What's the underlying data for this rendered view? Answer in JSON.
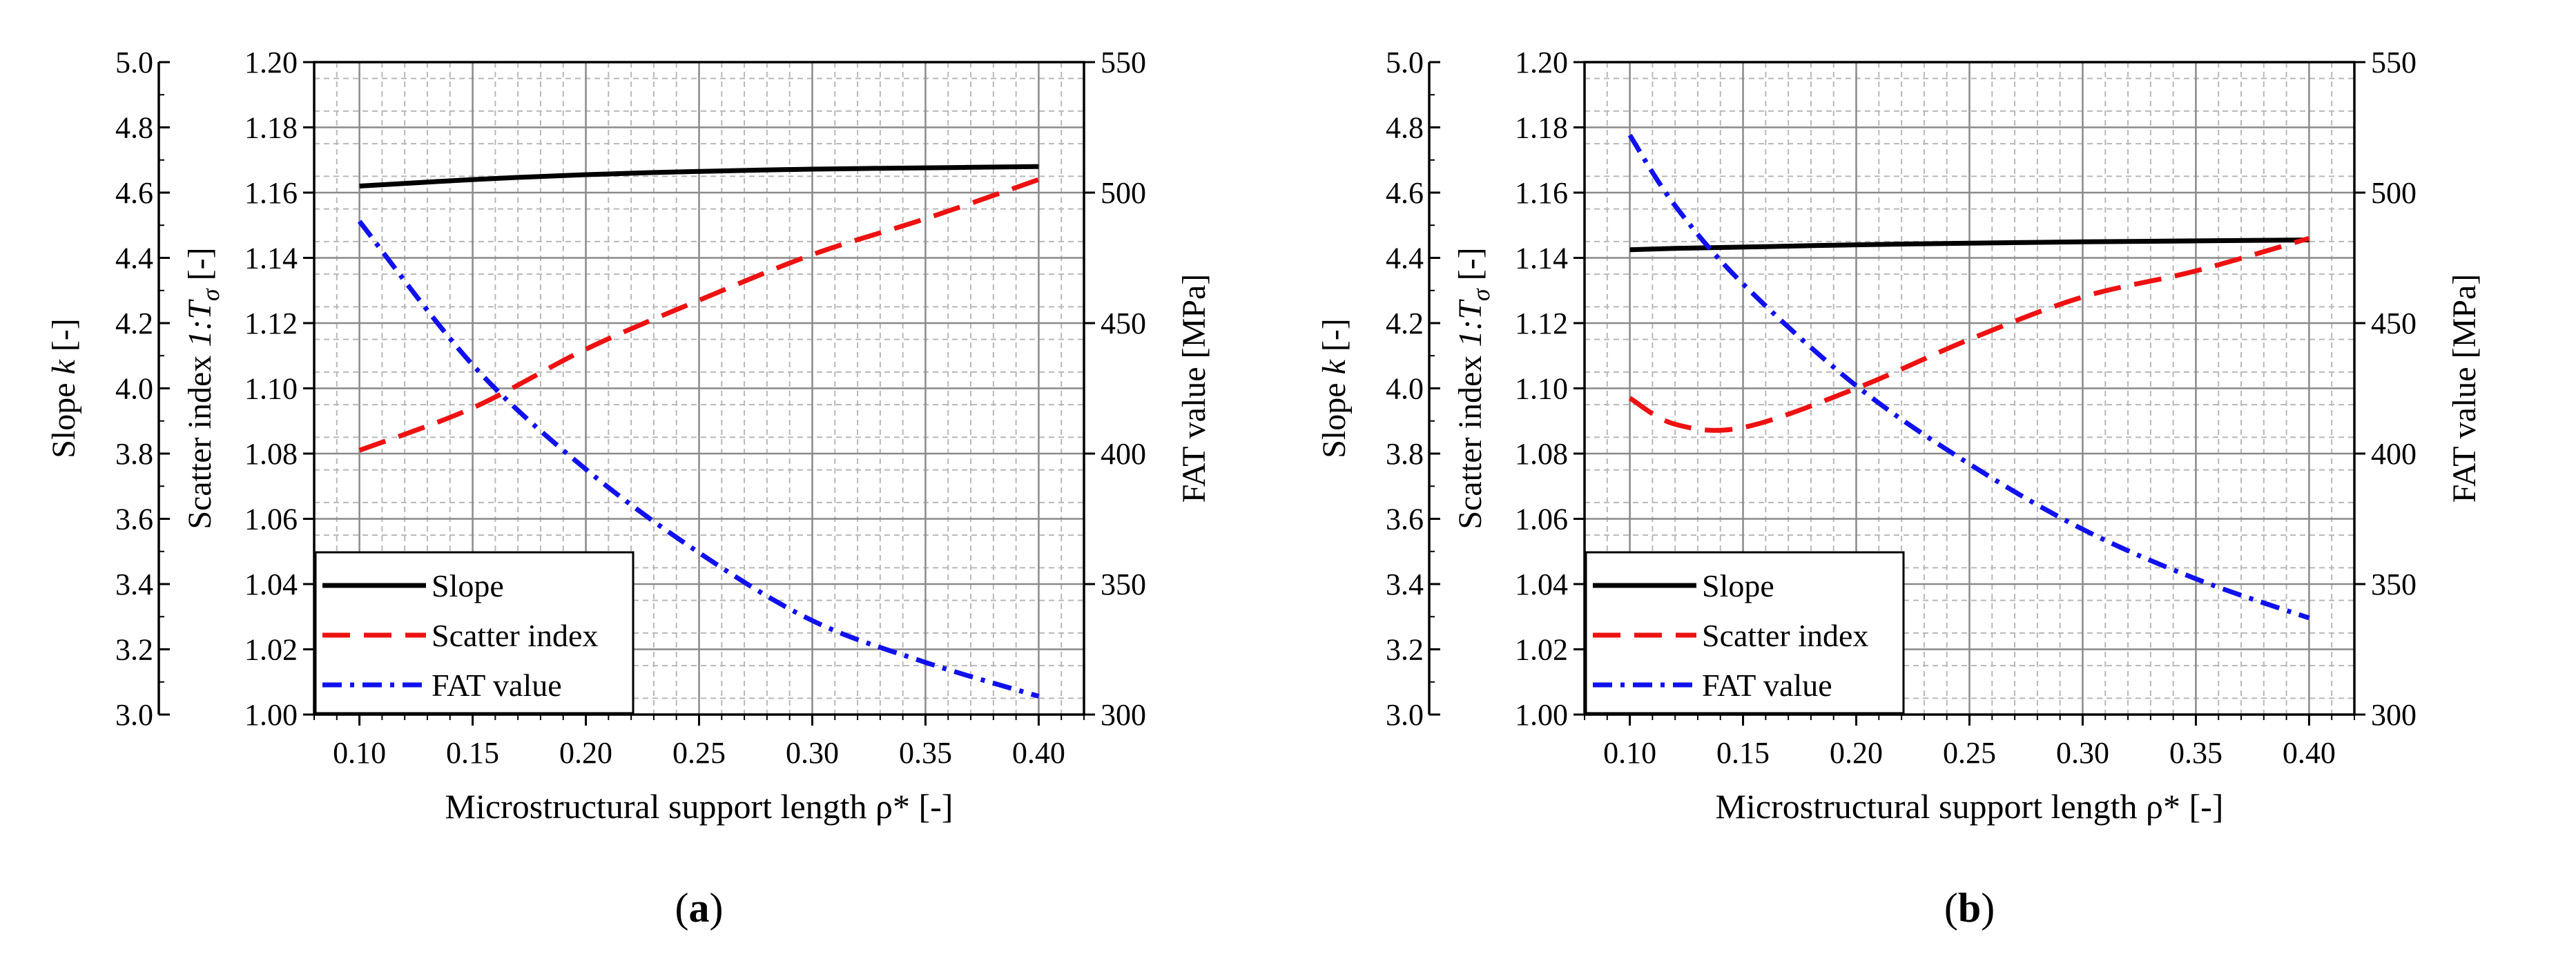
{
  "chart_data": [
    {
      "type": "line",
      "panel_label": "a",
      "xlabel": "Microstructural support length ρ* [-]",
      "ylabel_left_prefix": "Slope ",
      "ylabel_left_var": "k",
      "ylabel_left_suffix": " [-]",
      "ylabel_mid_prefix": "Scatter index ",
      "ylabel_mid_var": "1:T",
      "ylabel_mid_sub": "σ",
      "ylabel_mid_suffix": " [-]",
      "ylabel_right": "FAT value [MPa]",
      "xlim": [
        0.08,
        0.42
      ],
      "xticks": [
        "0.10",
        "0.15",
        "0.20",
        "0.25",
        "0.30",
        "0.35",
        "0.40"
      ],
      "ylim_slope": [
        3.0,
        5.0
      ],
      "yticks_slope": [
        "3.0",
        "3.2",
        "3.4",
        "3.6",
        "3.8",
        "4.0",
        "4.2",
        "4.4",
        "4.6",
        "4.8",
        "5.0"
      ],
      "ylim_scatter": [
        1.0,
        1.2
      ],
      "yticks_scatter": [
        "1.00",
        "1.02",
        "1.04",
        "1.06",
        "1.08",
        "1.10",
        "1.12",
        "1.14",
        "1.16",
        "1.18",
        "1.20"
      ],
      "ylim_fat": [
        300,
        550
      ],
      "yticks_fat": [
        "300",
        "350",
        "400",
        "450",
        "500",
        "550"
      ],
      "x": [
        0.1,
        0.15,
        0.2,
        0.25,
        0.3,
        0.35,
        0.4
      ],
      "series": [
        {
          "name": "Slope",
          "axis": "slope",
          "color": "#000000",
          "dash": "",
          "values": [
            4.62,
            4.64,
            4.655,
            4.665,
            4.672,
            4.676,
            4.68
          ]
        },
        {
          "name": "Scatter index",
          "axis": "scatter",
          "color": "#ee1111",
          "dash": "40 20",
          "values": [
            1.081,
            1.094,
            1.112,
            1.127,
            1.141,
            1.152,
            1.164
          ]
        },
        {
          "name": "FAT value",
          "axis": "fat",
          "color": "#1111ee",
          "dash": "28 12 6 12",
          "values": [
            489,
            434,
            394,
            362,
            336,
            320,
            307
          ]
        }
      ],
      "legend": {
        "position": "bottom-left",
        "entries": [
          "Slope",
          "Scatter index",
          "FAT value"
        ]
      }
    },
    {
      "type": "line",
      "panel_label": "b",
      "xlabel": "Microstructural support length ρ* [-]",
      "ylabel_left_prefix": "Slope ",
      "ylabel_left_var": "k",
      "ylabel_left_suffix": " [-]",
      "ylabel_mid_prefix": "Scatter index ",
      "ylabel_mid_var": "1:T",
      "ylabel_mid_sub": "σ",
      "ylabel_mid_suffix": " [-]",
      "ylabel_right": "FAT value [MPa]",
      "xlim": [
        0.08,
        0.42
      ],
      "xticks": [
        "0.10",
        "0.15",
        "0.20",
        "0.25",
        "0.30",
        "0.35",
        "0.40"
      ],
      "ylim_slope": [
        3.0,
        5.0
      ],
      "yticks_slope": [
        "3.0",
        "3.2",
        "3.4",
        "3.6",
        "3.8",
        "4.0",
        "4.2",
        "4.4",
        "4.6",
        "4.8",
        "5.0"
      ],
      "ylim_scatter": [
        1.0,
        1.2
      ],
      "yticks_scatter": [
        "1.00",
        "1.02",
        "1.04",
        "1.06",
        "1.08",
        "1.10",
        "1.12",
        "1.14",
        "1.16",
        "1.18",
        "1.20"
      ],
      "ylim_fat": [
        300,
        550
      ],
      "yticks_fat": [
        "300",
        "350",
        "400",
        "450",
        "500",
        "550"
      ],
      "x": [
        0.1,
        0.12,
        0.15,
        0.2,
        0.25,
        0.3,
        0.35,
        0.4
      ],
      "series": [
        {
          "name": "Slope",
          "axis": "slope",
          "color": "#000000",
          "dash": "",
          "values": [
            4.425,
            4.429,
            4.433,
            4.44,
            4.445,
            4.449,
            4.452,
            4.455
          ]
        },
        {
          "name": "Scatter index",
          "axis": "scatter",
          "color": "#ee1111",
          "dash": "40 20",
          "values": [
            1.097,
            1.089,
            1.088,
            1.1,
            1.115,
            1.128,
            1.136,
            1.146
          ]
        },
        {
          "name": "FAT value",
          "axis": "fat",
          "color": "#1111ee",
          "dash": "28 12 6 12",
          "values": [
            522,
            495,
            465,
            426,
            396,
            371,
            352,
            337
          ]
        }
      ],
      "legend": {
        "position": "bottom-left",
        "entries": [
          "Slope",
          "Scatter index",
          "FAT value"
        ]
      }
    }
  ]
}
